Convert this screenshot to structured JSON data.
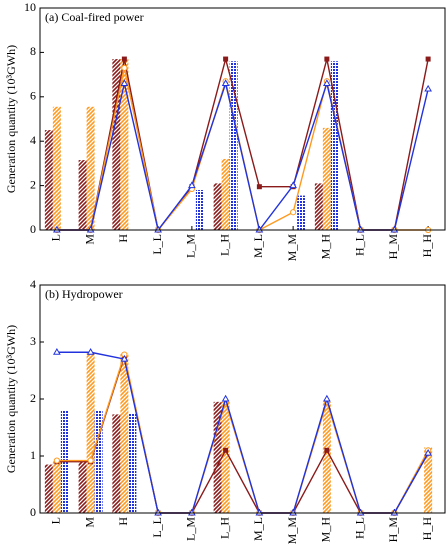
{
  "chart_data": [
    {
      "type": "combo",
      "title": "(a) Coal-fired power",
      "ylabel": "Generation quantity (10³GWh)",
      "categories": [
        "L",
        "M",
        "H",
        "L_L",
        "L_M",
        "L_H",
        "M_L",
        "M_M",
        "M_H",
        "H_L",
        "H_M",
        "H_H"
      ],
      "ylim": [
        0,
        10
      ],
      "yticks": [
        0,
        2,
        4,
        6,
        8,
        10
      ],
      "series": [
        {
          "kind": "bar",
          "pattern": "hatch",
          "color": "#8b1a1a",
          "values": [
            4.5,
            3.15,
            7.7,
            0,
            0,
            2.1,
            0,
            0,
            2.1,
            0,
            0,
            0
          ]
        },
        {
          "kind": "bar",
          "pattern": "hatch",
          "color": "#ff9a1f",
          "values": [
            5.55,
            5.55,
            7.7,
            0,
            0,
            3.2,
            0,
            0,
            4.6,
            0,
            0,
            0
          ]
        },
        {
          "kind": "bar",
          "pattern": "check",
          "color": "#2233dd",
          "values": [
            0,
            0,
            0,
            0,
            1.8,
            7.6,
            0,
            1.55,
            7.6,
            0,
            0,
            0
          ]
        },
        {
          "kind": "line",
          "marker": "square",
          "color": "#8b1a1a",
          "values": [
            0,
            0,
            7.7,
            0,
            1.95,
            7.7,
            1.95,
            1.95,
            7.7,
            0,
            0,
            7.7
          ]
        },
        {
          "kind": "line",
          "marker": "circle",
          "color": "#ff9a1f",
          "values": [
            0,
            0,
            7.3,
            0,
            1.85,
            6.7,
            0,
            0.8,
            6.7,
            0,
            0,
            0
          ]
        },
        {
          "kind": "line",
          "marker": "triangle",
          "color": "#2233dd",
          "values": [
            0,
            0,
            6.6,
            0,
            2.0,
            6.6,
            0,
            2.0,
            6.6,
            0,
            0,
            6.35
          ]
        }
      ]
    },
    {
      "type": "combo",
      "title": "(b) Hydropower",
      "ylabel": "Generation quantity (10³GWh)",
      "categories": [
        "L",
        "M",
        "H",
        "L_L",
        "L_M",
        "L_H",
        "M_L",
        "M_M",
        "M_H",
        "H_L",
        "H_M",
        "H_H"
      ],
      "ylim": [
        0,
        4
      ],
      "yticks": [
        0,
        1,
        2,
        3,
        4
      ],
      "series": [
        {
          "kind": "bar",
          "pattern": "hatch",
          "color": "#8b1a1a",
          "values": [
            0.85,
            0.9,
            1.73,
            0,
            0,
            1.95,
            0,
            0,
            0,
            0,
            0,
            0
          ]
        },
        {
          "kind": "bar",
          "pattern": "hatch",
          "color": "#ff9a1f",
          "values": [
            0.92,
            2.8,
            2.8,
            0,
            0,
            1.95,
            0,
            0,
            1.95,
            0,
            0,
            1.15
          ]
        },
        {
          "kind": "bar",
          "pattern": "check",
          "color": "#2233dd",
          "values": [
            1.8,
            1.8,
            1.75,
            0,
            0,
            0,
            0,
            0,
            0,
            0,
            0,
            0
          ]
        },
        {
          "kind": "line",
          "marker": "square",
          "color": "#8b1a1a",
          "values": [
            0.9,
            0.9,
            2.75,
            0,
            0,
            1.1,
            0,
            0,
            1.1,
            0,
            0,
            1.05
          ]
        },
        {
          "kind": "line",
          "marker": "circle",
          "color": "#ff9a1f",
          "values": [
            0.92,
            0.92,
            2.78,
            0,
            0,
            1.95,
            0,
            0,
            1.95,
            0,
            0,
            1.1
          ]
        },
        {
          "kind": "line",
          "marker": "triangle",
          "color": "#2233dd",
          "values": [
            2.82,
            2.82,
            2.7,
            0,
            0,
            2.0,
            0,
            0,
            2.0,
            0,
            0,
            1.05
          ]
        }
      ]
    }
  ]
}
